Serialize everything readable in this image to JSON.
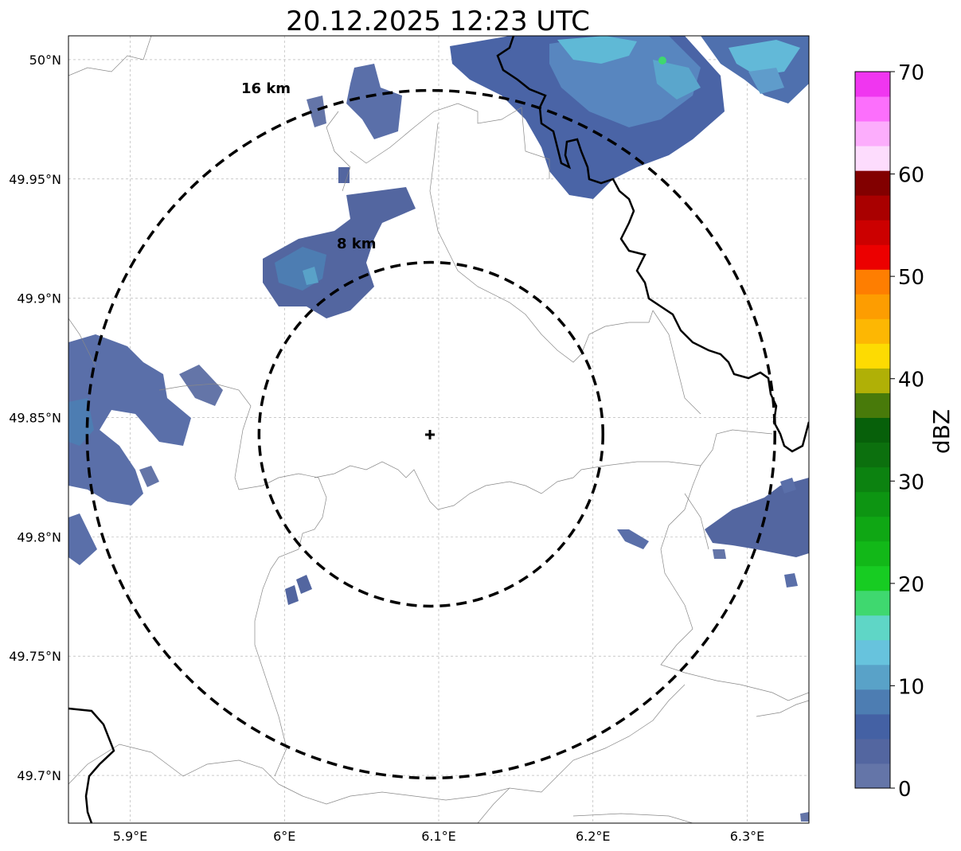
{
  "title": "20.12.2025 12:23 UTC",
  "map": {
    "lon_range": [
      5.86,
      6.34
    ],
    "lat_range": [
      49.68,
      50.01
    ],
    "center": {
      "lon": 6.095,
      "lat": 49.843
    },
    "gridlines": true,
    "lon_ticks": [
      {
        "value": 5.9,
        "label": "5.9°E"
      },
      {
        "value": 6.0,
        "label": "6°E"
      },
      {
        "value": 6.1,
        "label": "6.1°E"
      },
      {
        "value": 6.2,
        "label": "6.2°E"
      },
      {
        "value": 6.3,
        "label": "6.3°E"
      }
    ],
    "lat_ticks": [
      {
        "value": 50.0,
        "label": "50°N"
      },
      {
        "value": 49.95,
        "label": "49.95°N"
      },
      {
        "value": 49.9,
        "label": "49.9°N"
      },
      {
        "value": 49.85,
        "label": "49.85°N"
      },
      {
        "value": 49.8,
        "label": "49.8°N"
      },
      {
        "value": 49.75,
        "label": "49.75°N"
      },
      {
        "value": 49.7,
        "label": "49.7°N"
      }
    ],
    "range_rings": [
      {
        "radius_km": 8,
        "label": "8 km"
      },
      {
        "radius_km": 16,
        "label": "16 km"
      }
    ]
  },
  "colorbar": {
    "label": "dBZ",
    "min": 0,
    "max": 70,
    "tick_labels": [
      "0",
      "10",
      "20",
      "30",
      "40",
      "50",
      "60",
      "70"
    ],
    "colors": [
      "#6475a8",
      "#5366a0",
      "#4461a4",
      "#4d7db2",
      "#59a2c8",
      "#67c3dd",
      "#5fd6c6",
      "#3fd86f",
      "#17cc22",
      "#12b818",
      "#0fa714",
      "#0d9512",
      "#0c8210",
      "#0c700e",
      "#07600a",
      "#487a0a",
      "#b0b006",
      "#fddb02",
      "#fdb703",
      "#fd9d01",
      "#fe7e01",
      "#ec0000",
      "#cc0000",
      "#a90000",
      "#820000",
      "#fddcfd",
      "#fcadfc",
      "#fc6ffc",
      "#f036f0"
    ]
  }
}
